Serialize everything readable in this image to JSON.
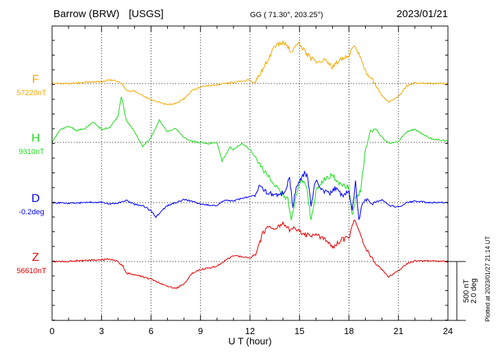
{
  "header": {
    "station": "Barrow (BRW)",
    "agency": "[USGS]",
    "coords": "GG ( 71.30°, 203.25°)",
    "date": "2023/01/21"
  },
  "footer": {
    "xlabel": "U T (hour)",
    "plotted": "Plotted at 2023/01/27 21:14 UT",
    "scale_nT": "500 nT",
    "scale_deg": "2.0 deg"
  },
  "colors": {
    "F": "#f5a800",
    "H": "#1fdc1f",
    "D": "#0000ff",
    "Z": "#e60000",
    "axis": "#000000",
    "grid": "#000000"
  },
  "chart_data": {
    "type": "line",
    "title": "Barrow (BRW) [USGS]",
    "xlabel": "U T (hour)",
    "xlim": [
      0,
      24
    ],
    "xticks": [
      0,
      3,
      6,
      9,
      12,
      15,
      18,
      21,
      24
    ],
    "tick_labels": [
      "0",
      "3",
      "6",
      "9",
      "12",
      "15",
      "18",
      "21",
      "24"
    ],
    "grid": true,
    "scale_bar": {
      "nT": 500,
      "deg": 2.0
    },
    "series": [
      {
        "name": "F",
        "baseline_label": "57220nT",
        "unit": "nT",
        "baseline": 57220,
        "points": [
          [
            0,
            57220
          ],
          [
            1,
            57220
          ],
          [
            2,
            57230
          ],
          [
            3,
            57235
          ],
          [
            3.5,
            57250
          ],
          [
            4,
            57240
          ],
          [
            4.3,
            57210
          ],
          [
            4.5,
            57160
          ],
          [
            5,
            57155
          ],
          [
            6,
            57080
          ],
          [
            7,
            57040
          ],
          [
            7.5,
            57050
          ],
          [
            8,
            57090
          ],
          [
            8.5,
            57160
          ],
          [
            9,
            57190
          ],
          [
            10,
            57210
          ],
          [
            11,
            57230
          ],
          [
            12,
            57250
          ],
          [
            12.3,
            57220
          ],
          [
            12.6,
            57300
          ],
          [
            13,
            57400
          ],
          [
            13.5,
            57540
          ],
          [
            14,
            57570
          ],
          [
            14.5,
            57500
          ],
          [
            15,
            57560
          ],
          [
            15.5,
            57460
          ],
          [
            16,
            57400
          ],
          [
            16.5,
            57420
          ],
          [
            17,
            57360
          ],
          [
            17.5,
            57430
          ],
          [
            18,
            57460
          ],
          [
            18.3,
            57540
          ],
          [
            18.6,
            57480
          ],
          [
            19,
            57330
          ],
          [
            19.5,
            57230
          ],
          [
            20,
            57120
          ],
          [
            20.4,
            57060
          ],
          [
            21,
            57110
          ],
          [
            21.5,
            57200
          ],
          [
            22,
            57225
          ],
          [
            23,
            57220
          ],
          [
            24,
            57220
          ]
        ]
      },
      {
        "name": "H",
        "baseline_label": "9310nT",
        "unit": "nT",
        "baseline": 9310,
        "points": [
          [
            0,
            9310
          ],
          [
            0.5,
            9420
          ],
          [
            1,
            9450
          ],
          [
            1.5,
            9410
          ],
          [
            2,
            9430
          ],
          [
            2.5,
            9480
          ],
          [
            3,
            9420
          ],
          [
            3.5,
            9440
          ],
          [
            4,
            9530
          ],
          [
            4.2,
            9700
          ],
          [
            4.5,
            9500
          ],
          [
            5,
            9400
          ],
          [
            5.5,
            9280
          ],
          [
            6,
            9350
          ],
          [
            6.5,
            9500
          ],
          [
            7,
            9400
          ],
          [
            7.5,
            9430
          ],
          [
            8,
            9350
          ],
          [
            8.5,
            9320
          ],
          [
            9,
            9310
          ],
          [
            9.5,
            9300
          ],
          [
            10,
            9310
          ],
          [
            10.3,
            9150
          ],
          [
            10.8,
            9270
          ],
          [
            11,
            9250
          ],
          [
            11.5,
            9300
          ],
          [
            12,
            9250
          ],
          [
            12.5,
            9140
          ],
          [
            13,
            9040
          ],
          [
            13.5,
            8950
          ],
          [
            14,
            8870
          ],
          [
            14.3,
            8820
          ],
          [
            14.5,
            8640
          ],
          [
            14.8,
            8850
          ],
          [
            15.1,
            9000
          ],
          [
            15.4,
            8950
          ],
          [
            15.7,
            8640
          ],
          [
            16,
            8900
          ],
          [
            16.5,
            9000
          ],
          [
            17,
            9030
          ],
          [
            17.5,
            8950
          ],
          [
            18,
            8930
          ],
          [
            18.2,
            8680
          ],
          [
            18.4,
            8830
          ],
          [
            18.7,
            8900
          ],
          [
            19,
            9250
          ],
          [
            19.3,
            9400
          ],
          [
            19.6,
            9430
          ],
          [
            20,
            9350
          ],
          [
            20.5,
            9300
          ],
          [
            21,
            9320
          ],
          [
            21.5,
            9400
          ],
          [
            22,
            9420
          ],
          [
            23,
            9340
          ],
          [
            24,
            9320
          ]
        ]
      },
      {
        "name": "D",
        "baseline_label": "-0.2deg",
        "unit": "deg",
        "baseline": -0.2,
        "points": [
          [
            0,
            -0.2
          ],
          [
            1,
            -0.22
          ],
          [
            2,
            -0.2
          ],
          [
            3,
            -0.18
          ],
          [
            3.5,
            -0.25
          ],
          [
            4,
            -0.22
          ],
          [
            4.5,
            -0.12
          ],
          [
            5,
            -0.25
          ],
          [
            5.5,
            -0.3
          ],
          [
            6,
            -0.48
          ],
          [
            6.3,
            -0.7
          ],
          [
            6.6,
            -0.5
          ],
          [
            7,
            -0.3
          ],
          [
            7.5,
            -0.2
          ],
          [
            8,
            -0.1
          ],
          [
            8.5,
            -0.15
          ],
          [
            9,
            -0.25
          ],
          [
            9.5,
            -0.28
          ],
          [
            10,
            -0.3
          ],
          [
            10.5,
            -0.1
          ],
          [
            11,
            -0.15
          ],
          [
            11.5,
            -0.05
          ],
          [
            12,
            0.0
          ],
          [
            12.3,
            0.08
          ],
          [
            12.6,
            0.4
          ],
          [
            13,
            0.15
          ],
          [
            13.4,
            0.1
          ],
          [
            13.8,
            0.05
          ],
          [
            14.1,
            0.2
          ],
          [
            14.4,
            0.6
          ],
          [
            14.6,
            -0.3
          ],
          [
            14.8,
            0.3
          ],
          [
            15,
            0.5
          ],
          [
            15.3,
            0.8
          ],
          [
            15.5,
            0.7
          ],
          [
            15.7,
            -0.3
          ],
          [
            16,
            0.6
          ],
          [
            16.4,
            0.2
          ],
          [
            16.8,
            0.1
          ],
          [
            17.2,
            0.3
          ],
          [
            17.6,
            0.0
          ],
          [
            18,
            0.2
          ],
          [
            18.2,
            -0.5
          ],
          [
            18.4,
            0.5
          ],
          [
            18.6,
            -0.8
          ],
          [
            18.8,
            -0.2
          ],
          [
            19,
            -0.1
          ],
          [
            19.5,
            -0.2
          ],
          [
            20,
            -0.1
          ],
          [
            20.5,
            -0.3
          ],
          [
            21,
            -0.35
          ],
          [
            21.5,
            -0.2
          ],
          [
            22,
            -0.15
          ],
          [
            23,
            -0.2
          ],
          [
            24,
            -0.2
          ]
        ]
      },
      {
        "name": "Z",
        "baseline_label": "56610nT",
        "unit": "nT",
        "baseline": 56610,
        "points": [
          [
            0,
            56610
          ],
          [
            1,
            56612
          ],
          [
            2,
            56620
          ],
          [
            3,
            56625
          ],
          [
            3.5,
            56630
          ],
          [
            4,
            56610
          ],
          [
            4.3,
            56570
          ],
          [
            4.5,
            56510
          ],
          [
            5,
            56500
          ],
          [
            6,
            56460
          ],
          [
            7,
            56400
          ],
          [
            7.5,
            56380
          ],
          [
            8,
            56420
          ],
          [
            8.5,
            56510
          ],
          [
            9,
            56540
          ],
          [
            10,
            56570
          ],
          [
            10.5,
            56620
          ],
          [
            11,
            56660
          ],
          [
            11.5,
            56650
          ],
          [
            12,
            56640
          ],
          [
            12.4,
            56680
          ],
          [
            12.8,
            56860
          ],
          [
            13.2,
            56920
          ],
          [
            13.6,
            56890
          ],
          [
            14,
            56930
          ],
          [
            14.4,
            56880
          ],
          [
            14.8,
            56890
          ],
          [
            15.2,
            56840
          ],
          [
            15.6,
            56830
          ],
          [
            16,
            56840
          ],
          [
            16.5,
            56800
          ],
          [
            17,
            56730
          ],
          [
            17.5,
            56790
          ],
          [
            18,
            56810
          ],
          [
            18.3,
            56960
          ],
          [
            18.6,
            56870
          ],
          [
            19,
            56720
          ],
          [
            19.5,
            56610
          ],
          [
            20,
            56540
          ],
          [
            20.4,
            56480
          ],
          [
            21,
            56530
          ],
          [
            21.5,
            56590
          ],
          [
            22,
            56615
          ],
          [
            23,
            56615
          ],
          [
            24,
            56610
          ]
        ]
      }
    ]
  }
}
